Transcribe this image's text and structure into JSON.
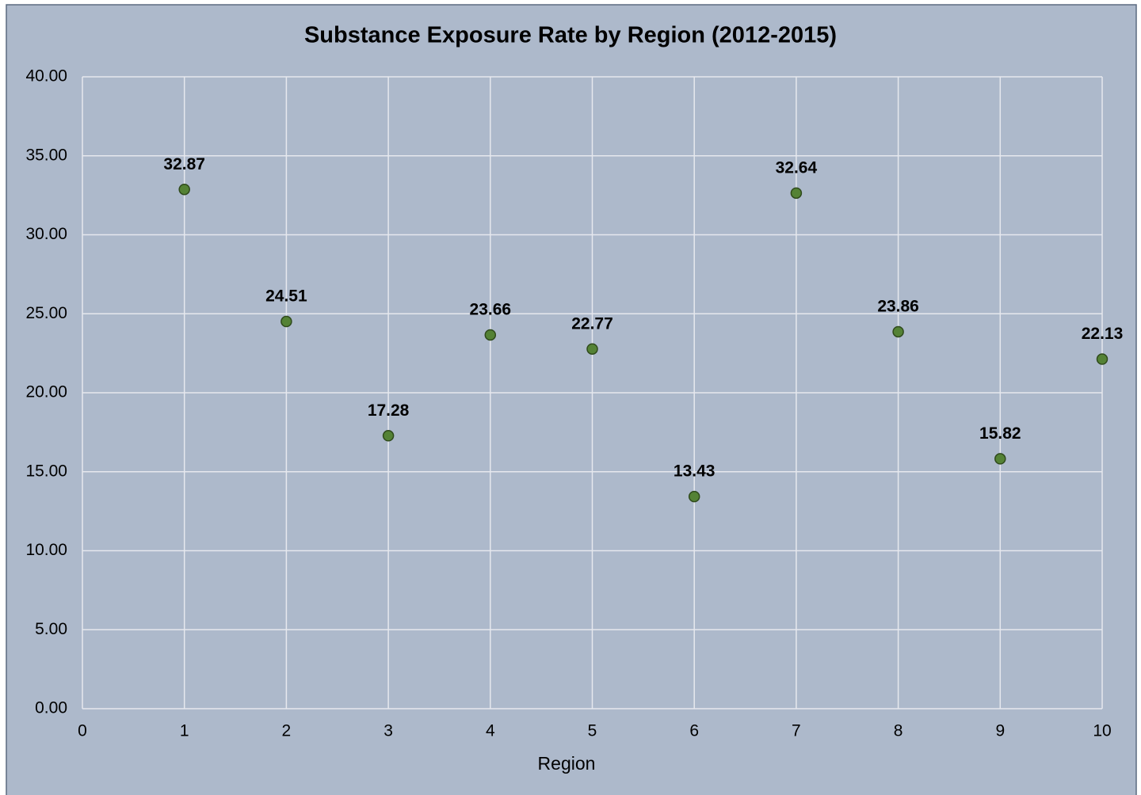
{
  "chart_data": {
    "type": "scatter",
    "title": "Substance Exposure Rate by Region (2012-2015)",
    "x_label": "Region",
    "x": [
      1,
      2,
      3,
      4,
      5,
      6,
      7,
      8,
      9,
      10
    ],
    "values": [
      32.87,
      24.51,
      17.28,
      23.66,
      22.77,
      13.43,
      32.64,
      23.86,
      15.82,
      22.13
    ],
    "color": "#548235",
    "xlim": [
      0,
      10
    ],
    "xticks": [
      0,
      1,
      2,
      3,
      4,
      5,
      6,
      7,
      8,
      9,
      10
    ],
    "ylim": [
      0,
      40
    ],
    "yticks": [
      {
        "value": 0,
        "label": "0.00"
      },
      {
        "value": 5,
        "label": "5.00"
      },
      {
        "value": 10,
        "label": "10.00"
      },
      {
        "value": 15,
        "label": "15.00"
      },
      {
        "value": 20,
        "label": "20.00"
      },
      {
        "value": 25,
        "label": "25.00"
      },
      {
        "value": 30,
        "label": "30.00"
      },
      {
        "value": 35,
        "label": "35.00"
      },
      {
        "value": 40,
        "label": "40.00"
      }
    ],
    "grid": true
  }
}
